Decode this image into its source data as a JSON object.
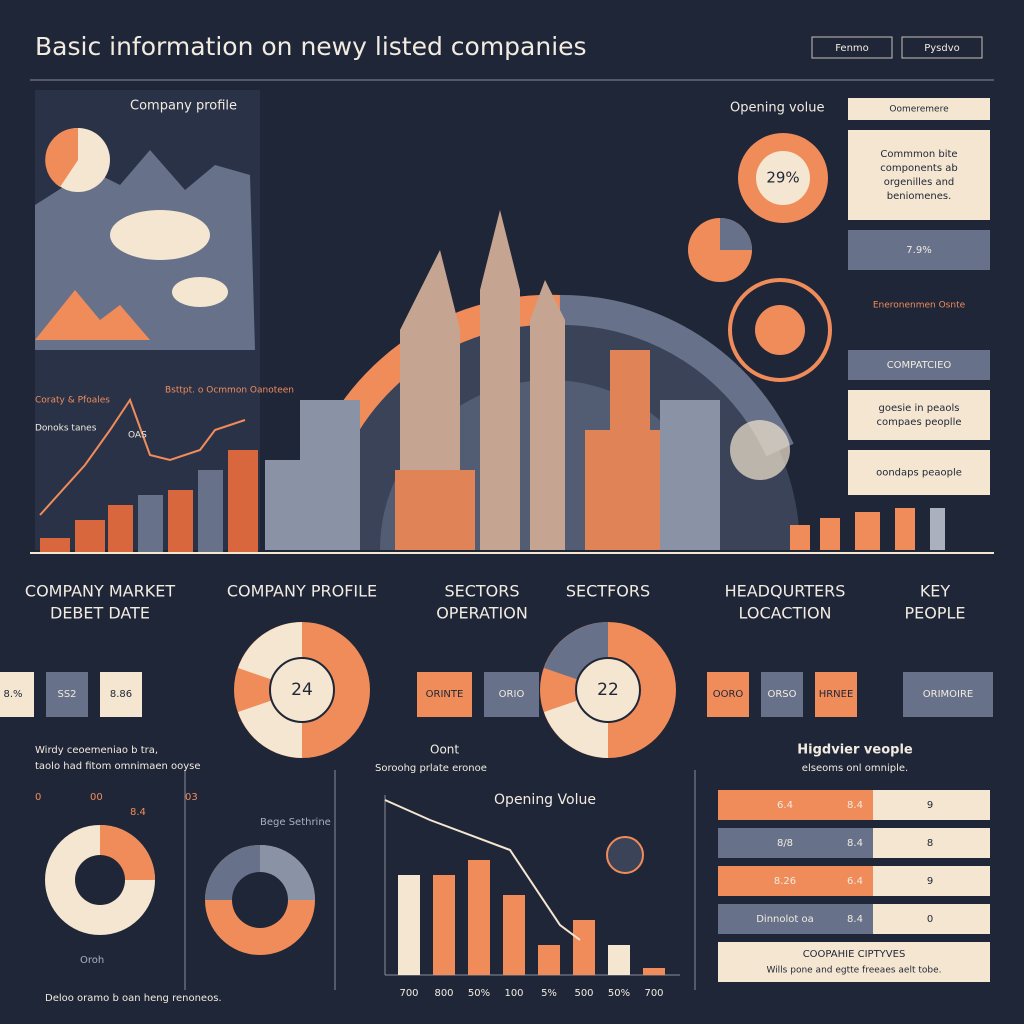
{
  "header": {
    "title": "Basic information on newy listed companies",
    "buttons": [
      "Fenmo",
      "Pysdvo"
    ]
  },
  "hero": {
    "left_label": "Company profile",
    "left_notes": [
      "Coraty & Pfoales",
      "Bsttpt. o Ocmmon Oanoteen",
      "Donoks tanes",
      "OAS"
    ],
    "right_label": "Opening volue",
    "donut_value": "29%",
    "boxes": [
      "Commmon bite components ab orgenilles and beniomenes.",
      "7.9%",
      "COMPATCIEO",
      "goesie in peaols compaes peoplle",
      "oondaps peaople"
    ],
    "box_top": "Oomeremere",
    "mid_note": "Eneronenmen Osnte"
  },
  "sections": [
    {
      "title": [
        "COMPANY MARKET",
        "DEBET DATE"
      ],
      "chips": [
        "8.%",
        "SS2",
        "8.86"
      ]
    },
    {
      "title": [
        "COMPANY PROFILE"
      ],
      "center": "24"
    },
    {
      "title": [
        "SECTORS",
        "OPERATION"
      ],
      "chips": [
        "ORINTE",
        "ORIO"
      ]
    },
    {
      "title": [
        "SECTFORS"
      ],
      "center": "22"
    },
    {
      "title": [
        "HEADQURTERS",
        "LOCACTION"
      ],
      "chips": [
        "OORO",
        "ORSO",
        "HRNEE"
      ]
    },
    {
      "title": [
        "KEY",
        "PEOPLE"
      ],
      "chips": [
        "ORIMOIRE"
      ]
    }
  ],
  "bottom": {
    "left": {
      "note": [
        "Wirdy ceoemeniao b tra,",
        "taolo had fitom omnimaen ooyse"
      ],
      "labels": [
        "0",
        "00",
        "8.4",
        "03",
        "Oroh",
        "Bege Sethrine"
      ],
      "footer": "Deloo oramo b oan heng renoneos."
    },
    "middle": {
      "head": "Oont",
      "sub": "Soroohg prlate eronoe",
      "chart_title": "Opening Volue",
      "x_labels": [
        "700",
        "800",
        "50%",
        "100",
        "5%",
        "500",
        "50%",
        "700"
      ]
    },
    "right": {
      "title": "Higdvier veople",
      "sub": "elseoms onl omniple.",
      "rows": [
        [
          "6.4",
          "8.4",
          "9"
        ],
        [
          "8/8",
          "8.4",
          "8"
        ],
        [
          "8.26",
          "6.4",
          "9"
        ],
        [
          "Dinnolot oa",
          "8.4",
          "0"
        ]
      ],
      "footer": [
        "COOPAHIE CIPTYVES",
        "Wills pone and egtte freeaes aelt tobe."
      ]
    }
  }
}
